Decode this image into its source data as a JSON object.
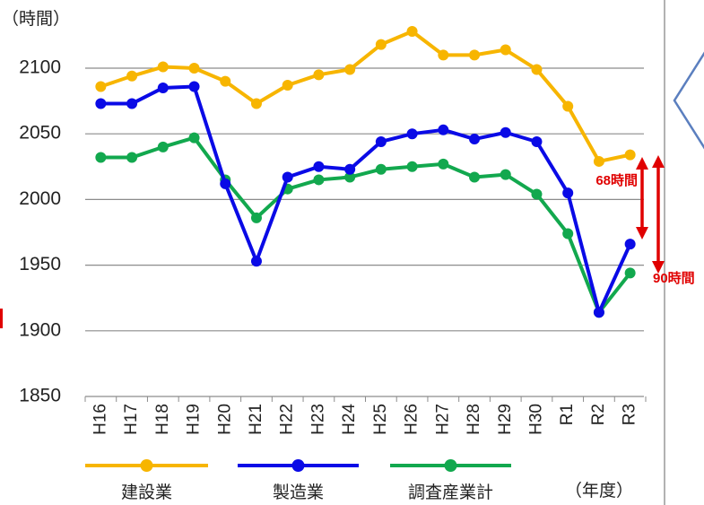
{
  "chart_data": {
    "type": "line",
    "y_label": "（時間）",
    "x_label": "（年度）",
    "categories": [
      "H16",
      "H17",
      "H18",
      "H19",
      "H20",
      "H21",
      "H22",
      "H23",
      "H24",
      "H25",
      "H26",
      "H27",
      "H28",
      "H29",
      "H30",
      "R1",
      "R2",
      "R3"
    ],
    "series": [
      {
        "name": "建設業",
        "color": "#f7b500",
        "values": [
          2086,
          2094,
          2101,
          2100,
          2090,
          2073,
          2087,
          2095,
          2099,
          2118,
          2128,
          2110,
          2110,
          2114,
          2099,
          2071,
          2029,
          2034
        ]
      },
      {
        "name": "製造業",
        "color": "#0a0ae6",
        "values": [
          2073,
          2073,
          2085,
          2086,
          2012,
          1953,
          2017,
          2025,
          2023,
          2044,
          2050,
          2053,
          2046,
          2051,
          2044,
          2005,
          1914,
          1966
        ]
      },
      {
        "name": "調査産業計",
        "color": "#12a84e",
        "values": [
          2032,
          2032,
          2040,
          2047,
          2015,
          1986,
          2008,
          2015,
          2017,
          2023,
          2025,
          2027,
          2017,
          2019,
          2004,
          1974,
          1914,
          1944
        ]
      }
    ],
    "ylim": [
      1850,
      2125
    ],
    "yticks": [
      1850,
      1900,
      1950,
      2000,
      2050,
      2100
    ],
    "grid": true,
    "legend": "bottom",
    "annotations": [
      "68時間",
      "90時間"
    ]
  }
}
